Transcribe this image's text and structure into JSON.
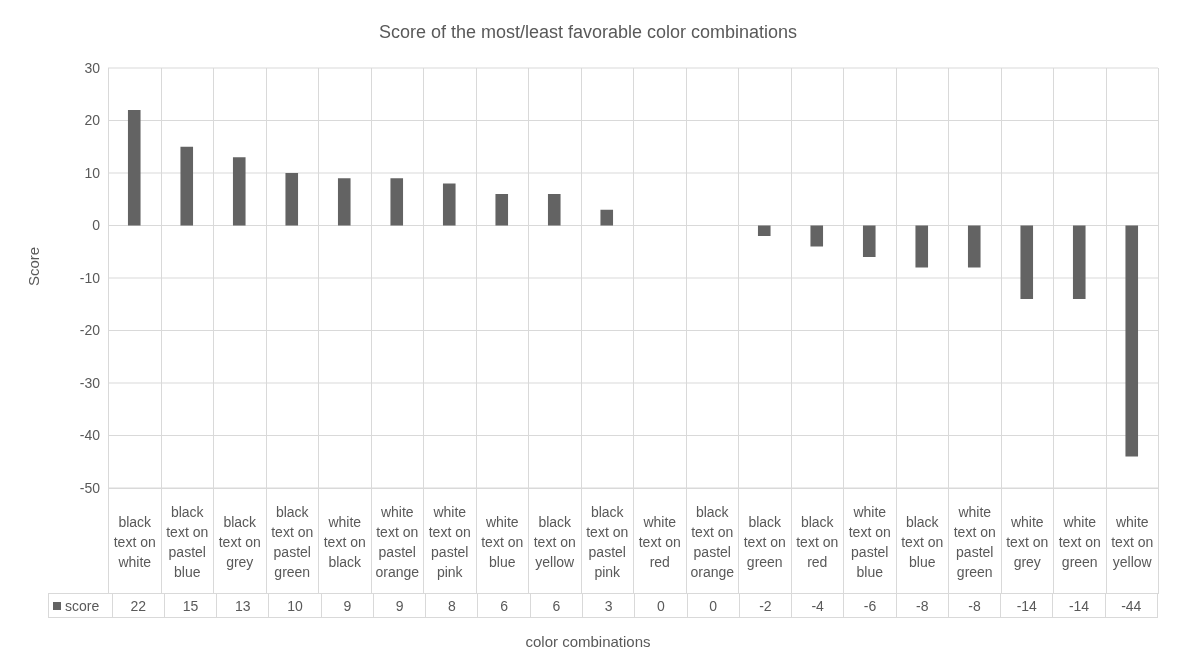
{
  "chart_data": {
    "type": "bar",
    "title": "Score of the most/least favorable color combinations",
    "xlabel": "color combinations",
    "ylabel": "Score",
    "categories": [
      "black text on white",
      "black text on pastel blue",
      "black text on grey",
      "black text on pastel green",
      "white text on black",
      "white text on pastel orange",
      "white text on pastel pink",
      "white text on blue",
      "black text on yellow",
      "black text on pastel pink",
      "white text on red",
      "black text on pastel orange",
      "black text on green",
      "black text on red",
      "white text on pastel blue",
      "black text on blue",
      "white text on pastel green",
      "white text on grey",
      "white text on green",
      "white text on yellow"
    ],
    "series": [
      {
        "name": "score",
        "color": "#636363",
        "values": [
          22,
          15,
          13,
          10,
          9,
          9,
          8,
          6,
          6,
          3,
          0,
          0,
          -2,
          -4,
          -6,
          -8,
          -8,
          -14,
          -14,
          -44
        ]
      }
    ],
    "ylim": [
      -50,
      30
    ],
    "yticks": [
      -50,
      -40,
      -30,
      -20,
      -10,
      0,
      10,
      20,
      30
    ],
    "grid": true,
    "data_labels": true
  }
}
